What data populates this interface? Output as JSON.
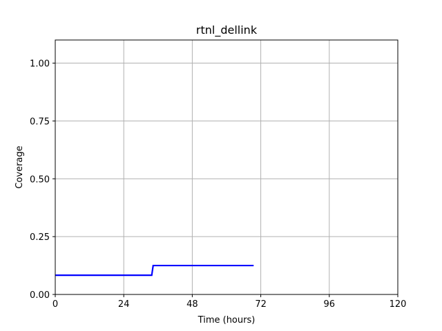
{
  "chart_data": {
    "type": "line",
    "title": "rtnl_dellink",
    "xlabel": "Time (hours)",
    "ylabel": "Coverage",
    "xlim": [
      0,
      120
    ],
    "ylim": [
      0,
      1.1
    ],
    "x_ticks": [
      0,
      24,
      48,
      72,
      96,
      120
    ],
    "x_tick_labels": [
      "0",
      "24",
      "48",
      "72",
      "96",
      "120"
    ],
    "y_ticks": [
      0,
      0.25,
      0.5,
      0.75,
      1.0
    ],
    "y_tick_labels": [
      "0.00",
      "0.25",
      "0.50",
      "0.75",
      "1.00"
    ],
    "grid": true,
    "series": [
      {
        "color": "#0000ff",
        "x": [
          0,
          33.8,
          34.3,
          69.5
        ],
        "y": [
          0.083,
          0.083,
          0.125,
          0.125
        ]
      }
    ]
  }
}
